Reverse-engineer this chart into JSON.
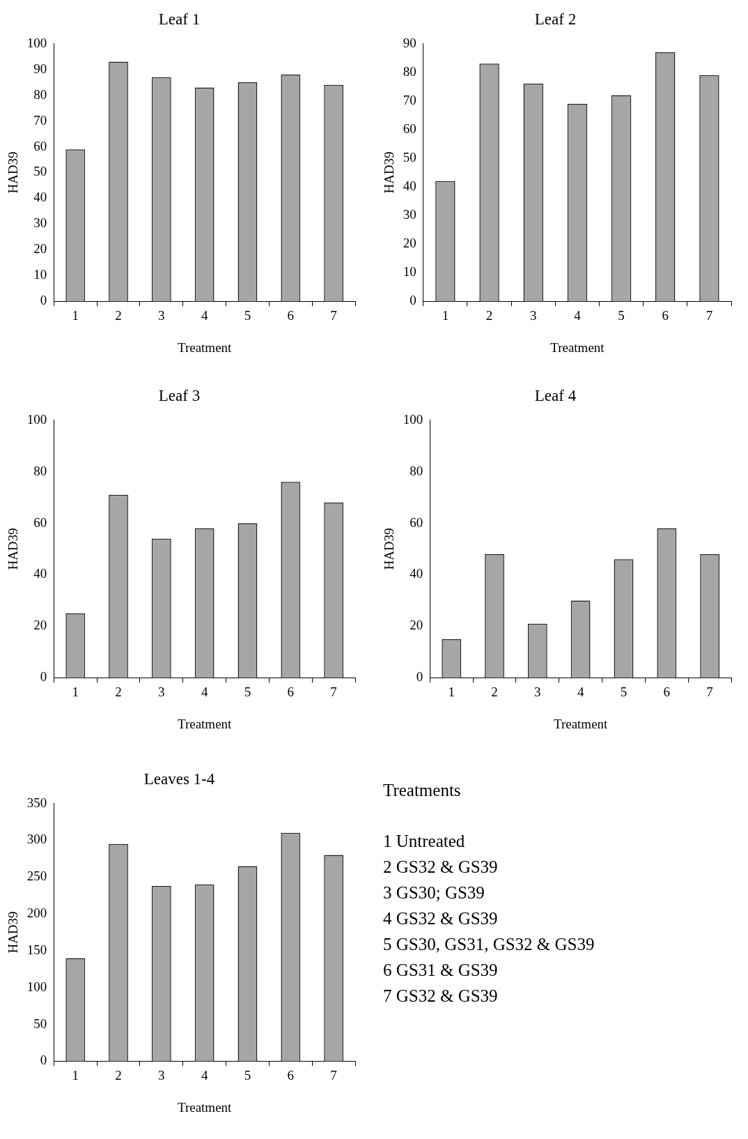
{
  "chart_data": [
    {
      "type": "bar",
      "title": "Leaf 1",
      "xlabel": "Treatment",
      "ylabel": "HAD39",
      "categories": [
        "1",
        "2",
        "3",
        "4",
        "5",
        "6",
        "7"
      ],
      "values": [
        59,
        93,
        87,
        83,
        85,
        88,
        84
      ],
      "color": "#a6a6a6",
      "ylim": [
        0,
        100
      ],
      "yticks": [
        0,
        10,
        20,
        30,
        40,
        50,
        60,
        70,
        80,
        90,
        100
      ],
      "legend": false
    },
    {
      "type": "bar",
      "title": "Leaf 2",
      "xlabel": "Treatment",
      "ylabel": "HAD39",
      "categories": [
        "1",
        "2",
        "3",
        "4",
        "5",
        "6",
        "7"
      ],
      "values": [
        42,
        83,
        76,
        69,
        72,
        87,
        79
      ],
      "color": "#a6a6a6",
      "ylim": [
        0,
        90
      ],
      "yticks": [
        0,
        10,
        20,
        30,
        40,
        50,
        60,
        70,
        80,
        90
      ],
      "legend": false
    },
    {
      "type": "bar",
      "title": "Leaf 3",
      "xlabel": "Treatment",
      "ylabel": "HAD39",
      "categories": [
        "1",
        "2",
        "3",
        "4",
        "5",
        "6",
        "7"
      ],
      "values": [
        25,
        71,
        54,
        58,
        60,
        76,
        68
      ],
      "color": "#a6a6a6",
      "ylim": [
        0,
        100
      ],
      "yticks": [
        0,
        20,
        40,
        60,
        80,
        100
      ],
      "legend": false
    },
    {
      "type": "bar",
      "title": "Leaf 4",
      "xlabel": "Treatment",
      "ylabel": "HAD39",
      "categories": [
        "1",
        "2",
        "3",
        "4",
        "5",
        "6",
        "7"
      ],
      "values": [
        15,
        48,
        21,
        30,
        46,
        58,
        48
      ],
      "color": "#a6a6a6",
      "ylim": [
        0,
        100
      ],
      "yticks": [
        0,
        20,
        40,
        60,
        80,
        100
      ],
      "legend": false
    },
    {
      "type": "bar",
      "title": "Leaves 1-4",
      "xlabel": "Treatment",
      "ylabel": "HAD39",
      "categories": [
        "1",
        "2",
        "3",
        "4",
        "5",
        "6",
        "7"
      ],
      "values": [
        140,
        295,
        238,
        240,
        265,
        310,
        280
      ],
      "color": "#a6a6a6",
      "ylim": [
        0,
        350
      ],
      "yticks": [
        0,
        50,
        100,
        150,
        200,
        250,
        300,
        350
      ],
      "legend": false
    },
    {
      "type": "other",
      "title": "Treatments",
      "annotations": [
        "1  Untreated",
        "2  GS32 & GS39",
        "3  GS30; GS39",
        "4  GS32 & GS39",
        "5  GS30, GS31, GS32 & GS39",
        "6  GS31 & GS39",
        "7  GS32 & GS39"
      ]
    }
  ]
}
